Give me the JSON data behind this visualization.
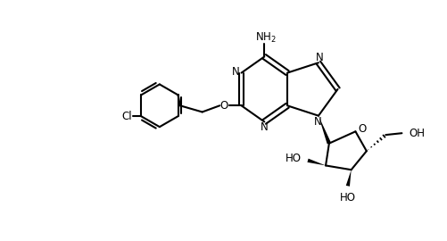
{
  "background_color": "#ffffff",
  "line_color": "#000000",
  "line_width": 1.5,
  "font_size": 8.5,
  "figsize": [
    5.02,
    2.7
  ],
  "dpi": 100,
  "xlim": [
    0,
    10.5
  ],
  "ylim": [
    0,
    5.6
  ]
}
